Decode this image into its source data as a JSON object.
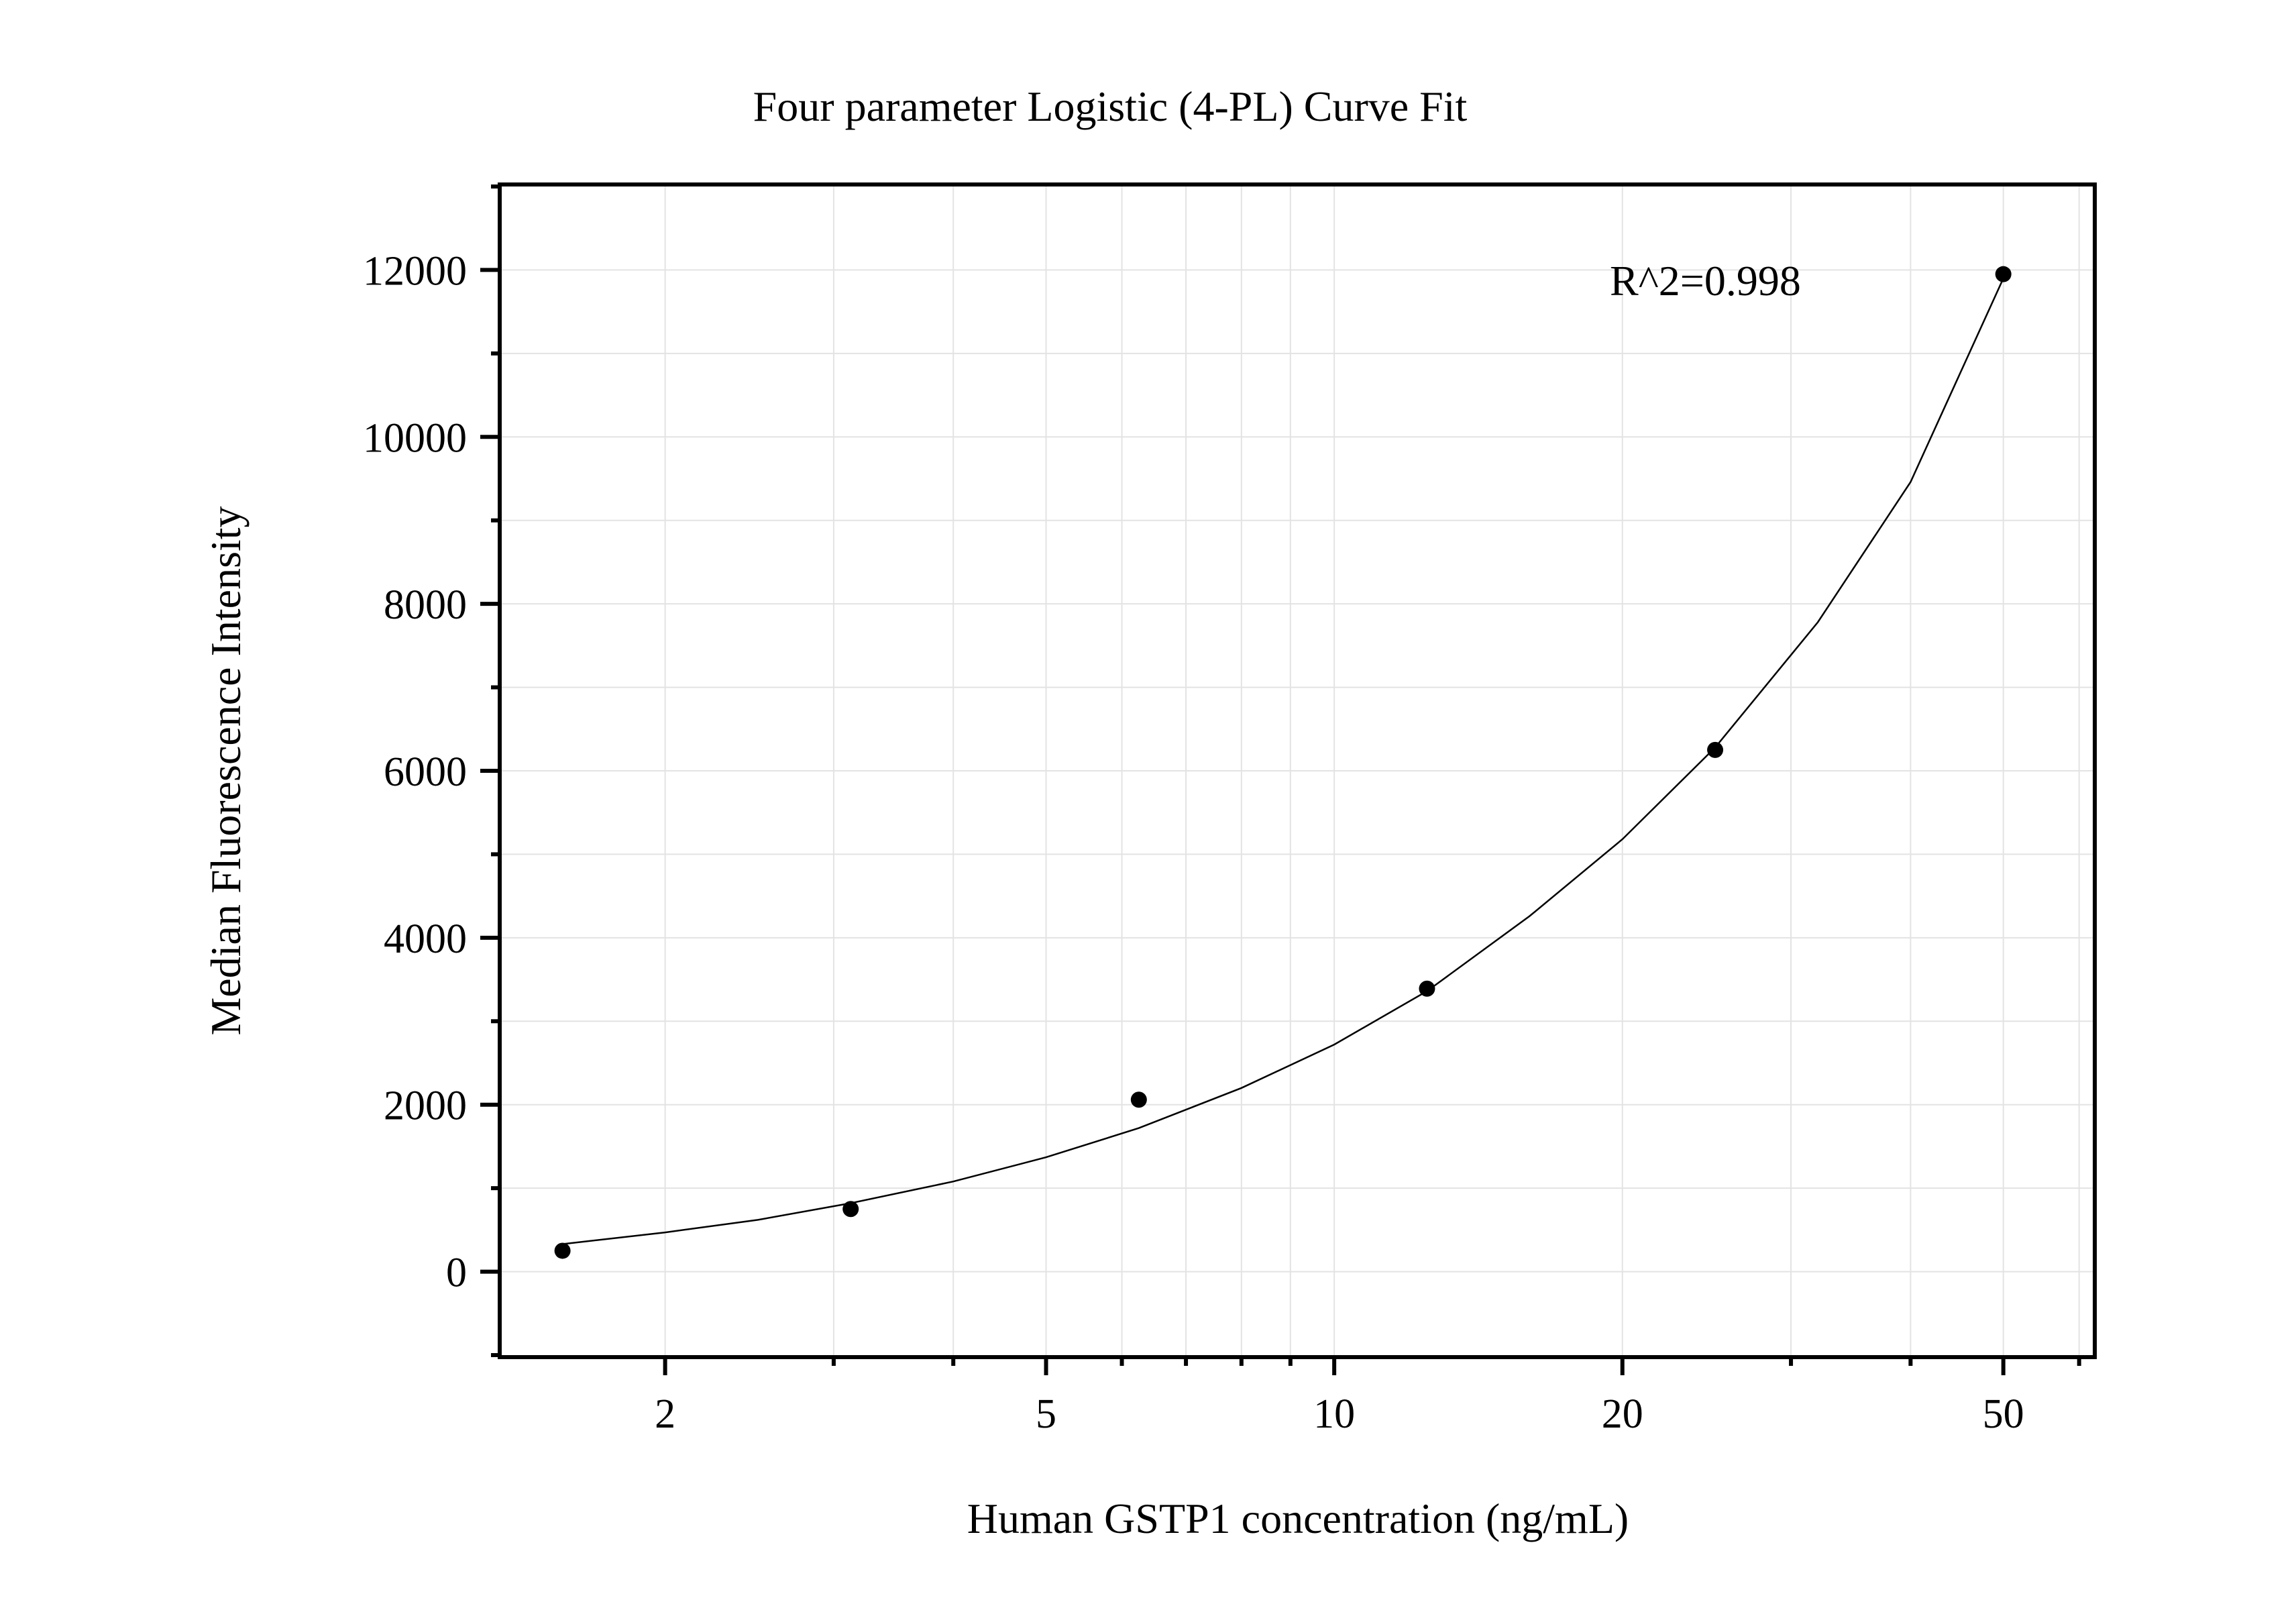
{
  "chart_data": {
    "type": "scatter",
    "title": "Four parameter Logistic (4-PL) Curve Fit",
    "xlabel": "Human GSTP1 concentration (ng/mL)",
    "ylabel": "Median Fluorescence Intensity",
    "x_scale": "log",
    "xlim": [
      1.35,
      62
    ],
    "ylim": [
      -1000,
      13000
    ],
    "x_major_ticks": [
      2,
      5,
      10,
      20,
      50
    ],
    "x_tick_labels": [
      "2",
      "5",
      "10",
      "20",
      "50"
    ],
    "x_minor_ticks": [
      3,
      4,
      6,
      7,
      8,
      9,
      30,
      40,
      60
    ],
    "y_major_ticks": [
      0,
      2000,
      4000,
      6000,
      8000,
      10000,
      12000
    ],
    "y_tick_labels": [
      "0",
      "2000",
      "4000",
      "6000",
      "8000",
      "10000",
      "12000"
    ],
    "y_minor_ticks": [
      -1000,
      1000,
      3000,
      5000,
      7000,
      9000,
      11000,
      13000
    ],
    "grid": true,
    "annotation": "R^2=0.998",
    "series": [
      {
        "type": "scatter",
        "x": [
          1.5625,
          3.125,
          6.25,
          12.5,
          25,
          50
        ],
        "y": [
          250,
          750,
          2060,
          3390,
          6250,
          11950
        ]
      },
      {
        "type": "line",
        "fit": "4PL",
        "x": [
          1.5625,
          2,
          2.5,
          3.125,
          4,
          5,
          6.25,
          8,
          10,
          12.5,
          16,
          20,
          25,
          32,
          40,
          50
        ],
        "y": [
          330,
          470,
          620,
          820,
          1080,
          1370,
          1720,
          2200,
          2720,
          3360,
          4260,
          5180,
          6280,
          7780,
          9460,
          11900
        ]
      }
    ]
  }
}
